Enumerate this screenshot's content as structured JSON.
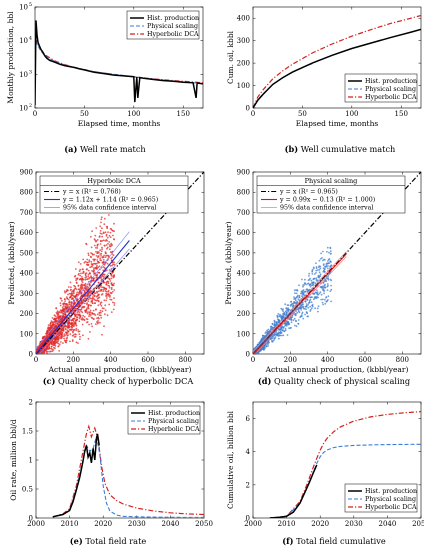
{
  "colors": {
    "hist": "#000000",
    "physical": "#3b7dd8",
    "hyperbolic": "#d4201f",
    "scatter_red": "#e32a2a",
    "scatter_blue": "#3f7fd0",
    "fit_blue": "#1f2fd8",
    "fit_red": "#cc1616",
    "ci_blue": "#8a8aff",
    "ci_red": "#ff8080"
  },
  "chart_data": [
    {
      "id": "a",
      "type": "line",
      "caption": {
        "letter": "(a)",
        "text": " Well rate match"
      },
      "xlabel": "Elapsed time, months",
      "ylabel": "Monthly production, bbl",
      "xlim": [
        0,
        170
      ],
      "ylim": [
        100,
        100000
      ],
      "yscale": "log",
      "xticks": [
        "0",
        "50",
        "100",
        "150"
      ],
      "xtick_values": [
        0,
        50,
        100,
        150
      ],
      "yticks": [
        "10",
        "10",
        "10",
        "10"
      ],
      "ytick_exp": [
        "2",
        "3",
        "4",
        "5"
      ],
      "ytick_values": [
        100,
        1000,
        10000,
        100000
      ],
      "legend": [
        "Hist. production",
        "Physical scaling",
        "Hyperbolic DCA"
      ],
      "legend_position": "top-right",
      "series": [
        {
          "name": "Hist. production",
          "style": "solid",
          "x": [
            0,
            1,
            2,
            3,
            4,
            5,
            6,
            8,
            10,
            12,
            15,
            20,
            25,
            30,
            35,
            40,
            45,
            50,
            55,
            60,
            70,
            80,
            90,
            100,
            101,
            103,
            104,
            106,
            110,
            120,
            130,
            140,
            150,
            160,
            163,
            164,
            166,
            170
          ],
          "y": [
            120,
            40000,
            15000,
            9000,
            7500,
            6500,
            5500,
            4500,
            3500,
            3000,
            2600,
            2300,
            2000,
            1800,
            1700,
            1600,
            1450,
            1350,
            1250,
            1150,
            1050,
            950,
            900,
            850,
            150,
            820,
            200,
            800,
            760,
            700,
            650,
            620,
            580,
            560,
            200,
            550,
            540,
            520
          ]
        },
        {
          "name": "Physical scaling",
          "style": "dashed",
          "x": [
            0,
            1,
            2,
            5,
            10,
            20,
            30,
            40,
            50,
            60,
            80,
            100,
            120,
            140,
            160,
            170
          ],
          "y": [
            9500,
            9000,
            8000,
            5500,
            3500,
            2400,
            1900,
            1600,
            1350,
            1200,
            1000,
            850,
            720,
            630,
            560,
            530
          ]
        },
        {
          "name": "Hyperbolic DCA",
          "style": "dashdot",
          "x": [
            0,
            1,
            2,
            5,
            10,
            20,
            30,
            40,
            50,
            60,
            80,
            100,
            120,
            140,
            160,
            170
          ],
          "y": [
            12000,
            10500,
            9000,
            6000,
            3800,
            2500,
            1950,
            1600,
            1380,
            1200,
            980,
            840,
            730,
            650,
            590,
            560
          ]
        }
      ]
    },
    {
      "id": "b",
      "type": "line",
      "caption": {
        "letter": "(b)",
        "text": " Well cumulative match"
      },
      "xlabel": "Elapsed time, months",
      "ylabel": "Cum. oil, kbbl",
      "xlim": [
        0,
        170
      ],
      "ylim": [
        0,
        450
      ],
      "xticks": [
        "0",
        "50",
        "100",
        "150"
      ],
      "xtick_values": [
        0,
        50,
        100,
        150
      ],
      "yticks": [
        "0",
        "100",
        "200",
        "300",
        "400"
      ],
      "ytick_values": [
        0,
        100,
        200,
        300,
        400
      ],
      "legend": [
        "Hist. production",
        "Physical scaling",
        "Hyperbolic DCA"
      ],
      "legend_position": "bottom-right",
      "series": [
        {
          "name": "Hist. production",
          "style": "solid",
          "x": [
            0,
            5,
            10,
            20,
            30,
            40,
            50,
            60,
            80,
            100,
            120,
            140,
            160,
            170
          ],
          "y": [
            0,
            35,
            60,
            105,
            135,
            160,
            180,
            200,
            235,
            265,
            290,
            315,
            338,
            350
          ]
        },
        {
          "name": "Physical scaling",
          "style": "dashed",
          "x": [
            0,
            5,
            10,
            20,
            30,
            40,
            50,
            60
          ],
          "y": [
            0,
            38,
            62,
            105,
            135,
            160,
            180,
            198
          ]
        },
        {
          "name": "Hyperbolic DCA",
          "style": "dashdot",
          "x": [
            0,
            5,
            10,
            20,
            30,
            40,
            50,
            60,
            80,
            100,
            120,
            140,
            160,
            170
          ],
          "y": [
            0,
            50,
            80,
            130,
            165,
            195,
            220,
            245,
            285,
            320,
            350,
            378,
            400,
            412
          ]
        }
      ]
    },
    {
      "id": "c",
      "type": "scatter",
      "caption": {
        "letter": "(c)",
        "text": " Quality check of hyperbolic DCA"
      },
      "xlabel": "Actual annual production, (kbbl/year)",
      "ylabel": "Predicted, (kbbl/year)",
      "xlim": [
        0,
        900
      ],
      "ylim": [
        0,
        900
      ],
      "xticks": [
        "0",
        "200",
        "400",
        "600",
        "800"
      ],
      "xtick_values": [
        0,
        200,
        400,
        600,
        800
      ],
      "yticks": [
        "0",
        "100",
        "200",
        "300",
        "400",
        "500",
        "600",
        "700",
        "800",
        "900"
      ],
      "ytick_values": [
        0,
        100,
        200,
        300,
        400,
        500,
        600,
        700,
        800,
        900
      ],
      "legend_title": "Hyperbolic DCA",
      "legend": [
        "y = x (R² = 0.768)",
        "y = 1.12x + 1.14 (R² = 0.965)",
        "95% data confidence interval"
      ],
      "legend_position": "top-left",
      "fit": {
        "slope": 1.12,
        "intercept": 1.14,
        "ci_upper": [
          [
            0,
            25
          ],
          [
            500,
            605
          ]
        ],
        "ci_lower": [
          [
            0,
            -20
          ],
          [
            500,
            520
          ]
        ]
      },
      "scatter": {
        "x_range": [
          0,
          420
        ],
        "spread": 0.55
      }
    },
    {
      "id": "d",
      "type": "scatter",
      "caption": {
        "letter": "(d)",
        "text": " Quality check of physical scaling"
      },
      "xlabel": "Actual annual production, (kbbl/year)",
      "ylabel": "Predicted, (kbbl/year)",
      "xlim": [
        0,
        900
      ],
      "ylim": [
        0,
        900
      ],
      "xticks": [
        "0",
        "200",
        "400",
        "600",
        "800"
      ],
      "xtick_values": [
        0,
        200,
        400,
        600,
        800
      ],
      "yticks": [
        "0",
        "100",
        "200",
        "300",
        "400",
        "500",
        "600",
        "700",
        "800",
        "900"
      ],
      "ytick_values": [
        0,
        100,
        200,
        300,
        400,
        500,
        600,
        700,
        800,
        900
      ],
      "legend_title": "Physical scaling",
      "legend": [
        "y = x (R² = 0.965)",
        "y = 0.99x − 0.13 (R² = 1.000)",
        "95% data confidence interval"
      ],
      "legend_position": "top-left",
      "fit": {
        "slope": 0.99,
        "intercept": -0.13,
        "ci_upper": [
          [
            0,
            12
          ],
          [
            500,
            507
          ]
        ],
        "ci_lower": [
          [
            0,
            -12
          ],
          [
            500,
            482
          ]
        ]
      },
      "scatter": {
        "x_range": [
          0,
          420
        ],
        "spread": 0.25
      }
    },
    {
      "id": "e",
      "type": "line",
      "caption": {
        "letter": "(e)",
        "text": " Total field rate"
      },
      "xlabel": "",
      "ylabel": "Oil rate, million bbl/d",
      "xlim": [
        2000,
        2050
      ],
      "ylim": [
        0,
        2
      ],
      "xticks": [
        "2000",
        "2010",
        "2020",
        "2030",
        "2040",
        "2050"
      ],
      "xtick_values": [
        2000,
        2010,
        2020,
        2030,
        2040,
        2050
      ],
      "yticks": [
        "0",
        "0.5",
        "1",
        "1.5",
        "2"
      ],
      "ytick_values": [
        0,
        0.5,
        1,
        1.5,
        2
      ],
      "legend": [
        "Hist. production",
        "Physical scaling",
        "Hyperbolic DCA"
      ],
      "legend_position": "top-right",
      "series": [
        {
          "name": "Hist. production",
          "style": "solid",
          "x": [
            2005,
            2008,
            2010,
            2011,
            2012,
            2013,
            2014,
            2014.5,
            2015,
            2015.5,
            2016,
            2016.5,
            2017,
            2017.5,
            2018,
            2018.3,
            2018.8
          ],
          "y": [
            0.02,
            0.06,
            0.13,
            0.28,
            0.48,
            0.7,
            0.98,
            1.15,
            1.25,
            1.05,
            1.12,
            0.95,
            1.2,
            1.0,
            1.38,
            1.45,
            1.25
          ]
        },
        {
          "name": "Physical scaling",
          "style": "dashed",
          "x": [
            2005,
            2008,
            2010,
            2012,
            2014,
            2015,
            2016,
            2017,
            2018,
            2019,
            2020,
            2021,
            2022,
            2024,
            2026,
            2030,
            2035,
            2040,
            2045,
            2050
          ],
          "y": [
            0.02,
            0.06,
            0.14,
            0.5,
            1.0,
            1.25,
            1.15,
            1.2,
            1.4,
            1.1,
            0.55,
            0.25,
            0.12,
            0.05,
            0.03,
            0.02,
            0.015,
            0.012,
            0.01,
            0.01
          ]
        },
        {
          "name": "Hyperbolic DCA",
          "style": "dashdot",
          "x": [
            2005,
            2008,
            2010,
            2012,
            2014,
            2015,
            2015.7,
            2016.5,
            2017.5,
            2018.5,
            2019.5,
            2020.5,
            2022,
            2024,
            2026,
            2030,
            2035,
            2040,
            2045,
            2050
          ],
          "y": [
            0.02,
            0.07,
            0.16,
            0.55,
            1.15,
            1.45,
            1.58,
            1.4,
            1.55,
            1.35,
            0.9,
            0.6,
            0.4,
            0.3,
            0.24,
            0.17,
            0.12,
            0.09,
            0.07,
            0.06
          ]
        }
      ]
    },
    {
      "id": "f",
      "type": "line",
      "caption": {
        "letter": "(f)",
        "text": " Total field cumulative"
      },
      "xlabel": "",
      "ylabel": "Cumulative oil, billion bbl",
      "xlim": [
        2000,
        2050
      ],
      "ylim": [
        0,
        7
      ],
      "xticks": [
        "2000",
        "2010",
        "2020",
        "2030",
        "2040",
        "2050"
      ],
      "xtick_values": [
        2000,
        2010,
        2020,
        2030,
        2040,
        2050
      ],
      "yticks": [
        "0",
        "2",
        "4",
        "6"
      ],
      "ytick_values": [
        0,
        2,
        4,
        6
      ],
      "legend": [
        "Hist. production",
        "Physical scaling",
        "Hyperbolic DCA"
      ],
      "legend_position": "bottom-right",
      "series": [
        {
          "name": "Hist. production",
          "style": "solid",
          "x": [
            2005,
            2008,
            2010,
            2012,
            2014,
            2015,
            2016,
            2017,
            2018,
            2019
          ],
          "y": [
            0.0,
            0.05,
            0.1,
            0.35,
            0.9,
            1.35,
            1.8,
            2.25,
            2.75,
            3.2
          ]
        },
        {
          "name": "Physical scaling",
          "style": "dashed",
          "x": [
            2005,
            2010,
            2014,
            2016,
            2018,
            2019,
            2020,
            2021,
            2022,
            2024,
            2026,
            2030,
            2035,
            2040,
            2045,
            2050
          ],
          "y": [
            0.0,
            0.1,
            0.9,
            1.8,
            2.8,
            3.3,
            3.7,
            3.95,
            4.1,
            4.25,
            4.32,
            4.38,
            4.41,
            4.43,
            4.44,
            4.45
          ]
        },
        {
          "name": "Hyperbolic DCA",
          "style": "dashdot",
          "x": [
            2005,
            2010,
            2014,
            2016,
            2018,
            2019,
            2020,
            2021,
            2022,
            2024,
            2026,
            2030,
            2035,
            2040,
            2045,
            2050
          ],
          "y": [
            0.0,
            0.1,
            1.0,
            2.0,
            3.1,
            3.6,
            4.1,
            4.5,
            4.8,
            5.2,
            5.5,
            5.85,
            6.1,
            6.25,
            6.35,
            6.42
          ]
        }
      ]
    }
  ]
}
